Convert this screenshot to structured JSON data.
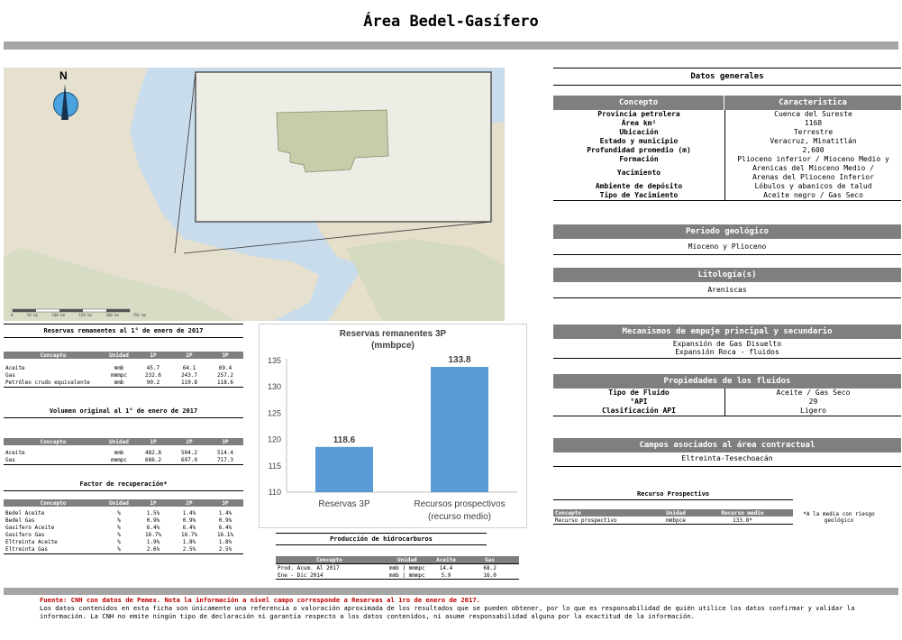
{
  "title": "Área Bedel-Gasífero",
  "map": {
    "north_label": "N",
    "scale_ticks": [
      "0",
      "50 km",
      "100 km",
      "150 km",
      "200 km",
      "250 km"
    ]
  },
  "reservas": {
    "title": "Reservas remanentes al 1° de enero de 2017",
    "headers": [
      "Concepto",
      "Unidad",
      "1P",
      "2P",
      "3P"
    ],
    "rows": [
      [
        "Aceite",
        "mmb",
        "45.7",
        "64.1",
        "69.4"
      ],
      [
        "Gas",
        "mmmpc",
        "232.6",
        "243.7",
        "257.2"
      ],
      [
        "Petróleo crudo equivalente",
        "mmb",
        "90.2",
        "110.8",
        "118.6"
      ]
    ]
  },
  "volumen": {
    "title": "Volumen original al 1° de enero de 2017",
    "headers": [
      "Concepto",
      "Unidad",
      "1P",
      "2P",
      "3P"
    ],
    "rows": [
      [
        "Aceite",
        "mmb",
        "482.8",
        "504.2",
        "514.4"
      ],
      [
        "Gas",
        "mmmpc",
        "686.2",
        "697.0",
        "717.3"
      ]
    ]
  },
  "factor": {
    "title": "Factor de recuperación*",
    "headers": [
      "Concepto",
      "Unidad",
      "1P",
      "2P",
      "3P"
    ],
    "rows": [
      [
        "Bedel Aceite",
        "%",
        "1.5%",
        "1.4%",
        "1.4%"
      ],
      [
        "Bedel Gas",
        "%",
        "0.9%",
        "0.9%",
        "0.9%"
      ],
      [
        "Gasifero Aceite",
        "%",
        "6.4%",
        "6.4%",
        "6.4%"
      ],
      [
        "Gasifero Gas",
        "%",
        "16.7%",
        "16.7%",
        "16.1%"
      ],
      [
        "Eltreinta Aceite",
        "%",
        "1.9%",
        "1.8%",
        "1.8%"
      ],
      [
        "Eltreinta Gas",
        "%",
        "2.6%",
        "2.5%",
        "2.5%"
      ]
    ]
  },
  "chart_data": {
    "type": "bar",
    "title": "Reservas remanentes 3P",
    "subtitle": "(mmbpce)",
    "categories": [
      "Reservas 3P",
      "Recursos prospectivos (recurso medio)"
    ],
    "category_lines": [
      [
        "Reservas 3P"
      ],
      [
        "Recursos prospectivos",
        "(recurso medio)"
      ]
    ],
    "values": [
      118.6,
      133.8
    ],
    "value_labels": [
      "118.6",
      "133.8"
    ],
    "ylim": [
      110,
      135
    ],
    "yticks": [
      "110",
      "115",
      "120",
      "125",
      "130",
      "135"
    ],
    "grid": false,
    "bar_color": "#5b9bd5"
  },
  "produccion": {
    "title": "Producción de hidrocarburos",
    "headers": [
      "Concepto",
      "Unidad",
      "Aceite",
      "Gas"
    ],
    "rows": [
      [
        "Prod. Acum. Al 2017",
        "mmb | mmmpc",
        "14.4",
        "68.2"
      ],
      [
        "Ene - Dic 2014",
        "mmb | mmmpc",
        "5.9",
        "16.0"
      ]
    ]
  },
  "datos": {
    "title": "Datos generales",
    "headers": [
      "Concepto",
      "Caracteristica"
    ],
    "rows": [
      [
        "Provincia petrolera",
        "Cuenca del Sureste"
      ],
      [
        "Área km²",
        "1168"
      ],
      [
        "Ubicación",
        "Terrestre"
      ],
      [
        "Estado y municipio",
        "Veracruz, Minatitlán"
      ],
      [
        "Profundidad promedio (m)",
        "2,600"
      ],
      [
        "Formación",
        "Plioceno inferior / Mioceno Medio y"
      ],
      [
        "Yacimiento",
        "Arenicas del Mioceno Medio / Arenas del Plioceno Inferior"
      ],
      [
        "Ambiente de depósito",
        "Lóbulos y abanicos de talud"
      ],
      [
        "Tipo de Yacimiento",
        "Aceite negro / Gas Seco"
      ]
    ]
  },
  "periodo": {
    "title": "Periodo geológico",
    "value": "Mioceno y Plioceno"
  },
  "litologia": {
    "title": "Litología(s)",
    "value": "Areniscas"
  },
  "mecanismos": {
    "title": "Mecanismos de empuje principal y secundario",
    "values": [
      "Expansión de Gas Disuelto",
      "Expansión Roca - fluidos"
    ]
  },
  "fluidos": {
    "title": "Propiedades de los fluidos",
    "rows": [
      [
        "Tipo de Fluido",
        "Aceite / Gas Seco"
      ],
      [
        "°API",
        "29"
      ],
      [
        "Clasificación API",
        "Ligero"
      ]
    ]
  },
  "campos": {
    "title": "Campos asociados al área contractual",
    "value": "Eltreinta-Tesechoacán"
  },
  "recurso": {
    "title": "Recurso Prospectivo",
    "headers": [
      "Concepto",
      "Unidad",
      "Recurso medio"
    ],
    "row": [
      "Recurso prospectivo",
      "mmbpce",
      "133.8*"
    ],
    "note": "*A la media con riesgo geológico"
  },
  "footer": {
    "source": "Fuente: CNH con datos de Pemex. Nota la información a nivel campo corresponde a Reservas al 1ro de enero de 2017.",
    "disclaimer": "Los datos contenidos en esta ficha son únicamente una referencia o valoración aproximada de los resultados que se pueden obtener, por lo que es responsabilidad de quién utilice los datos confirmar y validar la información. La CNH no emite ningún tipo de declaración ni garantía respecto a los datos contenidos, ni asume responsabilidad alguna por la exactitud de la información."
  }
}
